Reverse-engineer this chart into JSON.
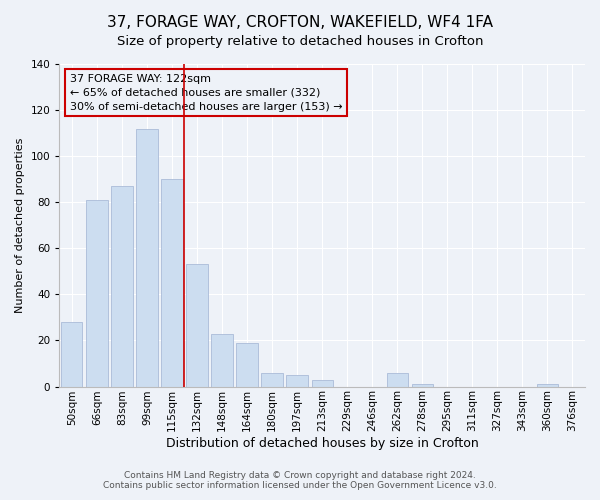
{
  "title": "37, FORAGE WAY, CROFTON, WAKEFIELD, WF4 1FA",
  "subtitle": "Size of property relative to detached houses in Crofton",
  "xlabel": "Distribution of detached houses by size in Crofton",
  "ylabel": "Number of detached properties",
  "bar_labels": [
    "50sqm",
    "66sqm",
    "83sqm",
    "99sqm",
    "115sqm",
    "132sqm",
    "148sqm",
    "164sqm",
    "180sqm",
    "197sqm",
    "213sqm",
    "229sqm",
    "246sqm",
    "262sqm",
    "278sqm",
    "295sqm",
    "311sqm",
    "327sqm",
    "343sqm",
    "360sqm",
    "376sqm"
  ],
  "bar_values": [
    28,
    81,
    87,
    112,
    90,
    53,
    23,
    19,
    6,
    5,
    3,
    0,
    0,
    6,
    1,
    0,
    0,
    0,
    0,
    1,
    0
  ],
  "bar_color": "#ccddf0",
  "bar_edge_color": "#aabbd8",
  "annotation_box_text": "37 FORAGE WAY: 122sqm\n← 65% of detached houses are smaller (332)\n30% of semi-detached houses are larger (153) →",
  "annotation_box_edge_color": "#cc0000",
  "vline_x_index": 4,
  "vline_color": "#cc0000",
  "ylim": [
    0,
    140
  ],
  "yticks": [
    0,
    20,
    40,
    60,
    80,
    100,
    120,
    140
  ],
  "background_color": "#eef2f8",
  "grid_color": "#ffffff",
  "title_fontsize": 11,
  "subtitle_fontsize": 9.5,
  "xlabel_fontsize": 9,
  "ylabel_fontsize": 8,
  "tick_fontsize": 7.5,
  "annotation_fontsize": 8,
  "footer_fontsize": 6.5,
  "footer_line1": "Contains HM Land Registry data © Crown copyright and database right 2024.",
  "footer_line2": "Contains public sector information licensed under the Open Government Licence v3.0."
}
